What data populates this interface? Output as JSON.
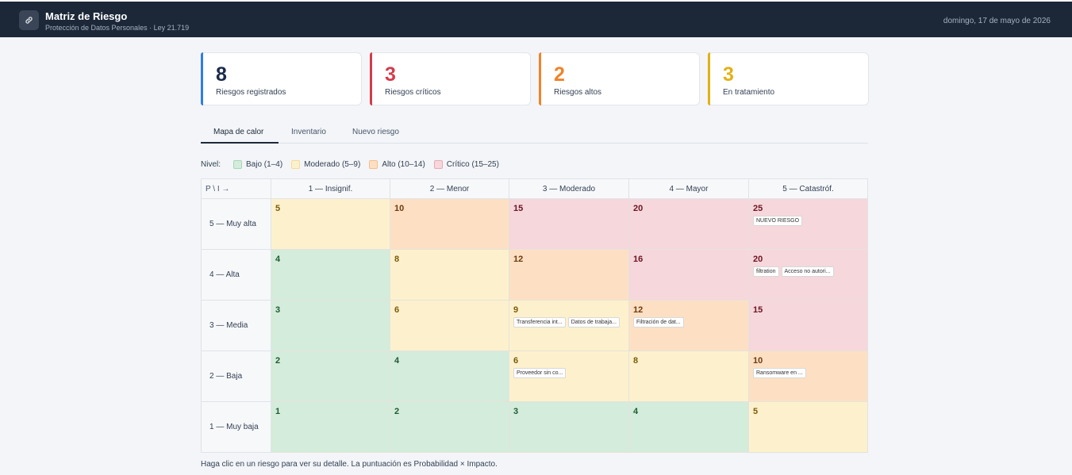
{
  "header": {
    "title": "Matriz de Riesgo",
    "subtitle": "Protección de Datos Personales · Ley 21.719",
    "date": "domingo, 17 de mayo de 2026",
    "logo_icon": "link-icon"
  },
  "stats": [
    {
      "value": "8",
      "label": "Riesgos registrados",
      "color": "#1a2b4a",
      "accent": "#2f7de1"
    },
    {
      "value": "3",
      "label": "Riesgos críticos",
      "color": "#d43c4b",
      "accent": "#d43c4b"
    },
    {
      "value": "2",
      "label": "Riesgos altos",
      "color": "#ef8429",
      "accent": "#ef8429"
    },
    {
      "value": "3",
      "label": "En tratamiento",
      "color": "#e2b114",
      "accent": "#e2b114"
    }
  ],
  "tabs": [
    {
      "label": "Mapa de calor",
      "active": true
    },
    {
      "label": "Inventario",
      "active": false
    },
    {
      "label": "Nuevo riesgo",
      "active": false
    }
  ],
  "legend": {
    "title": "Nivel:",
    "items": [
      {
        "label": "Bajo (1–4)",
        "color": "#d4ecdb",
        "border": "#a9d6b6"
      },
      {
        "label": "Moderado (5–9)",
        "color": "#fdf1cd",
        "border": "#f1dc9a"
      },
      {
        "label": "Alto (10–14)",
        "color": "#fde0c3",
        "border": "#f3bf8c"
      },
      {
        "label": "Crítico (15–25)",
        "color": "#f6d7dc",
        "border": "#e9aab4"
      }
    ]
  },
  "matrix": {
    "corner": "P \\ I →",
    "columns": [
      "1 — Insignif.",
      "2 — Menor",
      "3 — Moderado",
      "4 — Mayor",
      "5 — Catastróf."
    ],
    "rows": [
      {
        "label": "5 — Muy alta",
        "cells": [
          {
            "score": "5",
            "level": "mod",
            "chips": []
          },
          {
            "score": "10",
            "level": "alto",
            "chips": []
          },
          {
            "score": "15",
            "level": "crit",
            "chips": []
          },
          {
            "score": "20",
            "level": "crit",
            "chips": []
          },
          {
            "score": "25",
            "level": "crit",
            "chips": [
              "NUEVO RIESGO"
            ]
          }
        ]
      },
      {
        "label": "4 — Alta",
        "cells": [
          {
            "score": "4",
            "level": "bajo",
            "chips": []
          },
          {
            "score": "8",
            "level": "mod",
            "chips": []
          },
          {
            "score": "12",
            "level": "alto",
            "chips": []
          },
          {
            "score": "16",
            "level": "crit",
            "chips": []
          },
          {
            "score": "20",
            "level": "crit",
            "chips": [
              "filtration",
              "Acceso no autori..."
            ]
          }
        ]
      },
      {
        "label": "3 — Media",
        "cells": [
          {
            "score": "3",
            "level": "bajo",
            "chips": []
          },
          {
            "score": "6",
            "level": "mod",
            "chips": []
          },
          {
            "score": "9",
            "level": "mod",
            "chips": [
              "Transferencia int...",
              "Datos de trabaja..."
            ]
          },
          {
            "score": "12",
            "level": "alto",
            "chips": [
              "Filtración de dat..."
            ]
          },
          {
            "score": "15",
            "level": "crit",
            "chips": []
          }
        ]
      },
      {
        "label": "2 — Baja",
        "cells": [
          {
            "score": "2",
            "level": "bajo",
            "chips": []
          },
          {
            "score": "4",
            "level": "bajo",
            "chips": []
          },
          {
            "score": "6",
            "level": "mod",
            "chips": [
              "Proveedor sin co..."
            ]
          },
          {
            "score": "8",
            "level": "mod",
            "chips": []
          },
          {
            "score": "10",
            "level": "alto",
            "chips": [
              "Ransomware en ..."
            ]
          }
        ]
      },
      {
        "label": "1 — Muy baja",
        "cells": [
          {
            "score": "1",
            "level": "bajo",
            "chips": []
          },
          {
            "score": "2",
            "level": "bajo",
            "chips": []
          },
          {
            "score": "3",
            "level": "bajo",
            "chips": []
          },
          {
            "score": "4",
            "level": "bajo",
            "chips": []
          },
          {
            "score": "5",
            "level": "mod",
            "chips": []
          }
        ]
      }
    ]
  },
  "footnote": "Haga clic en un riesgo para ver su detalle. La puntuación es Probabilidad × Impacto."
}
